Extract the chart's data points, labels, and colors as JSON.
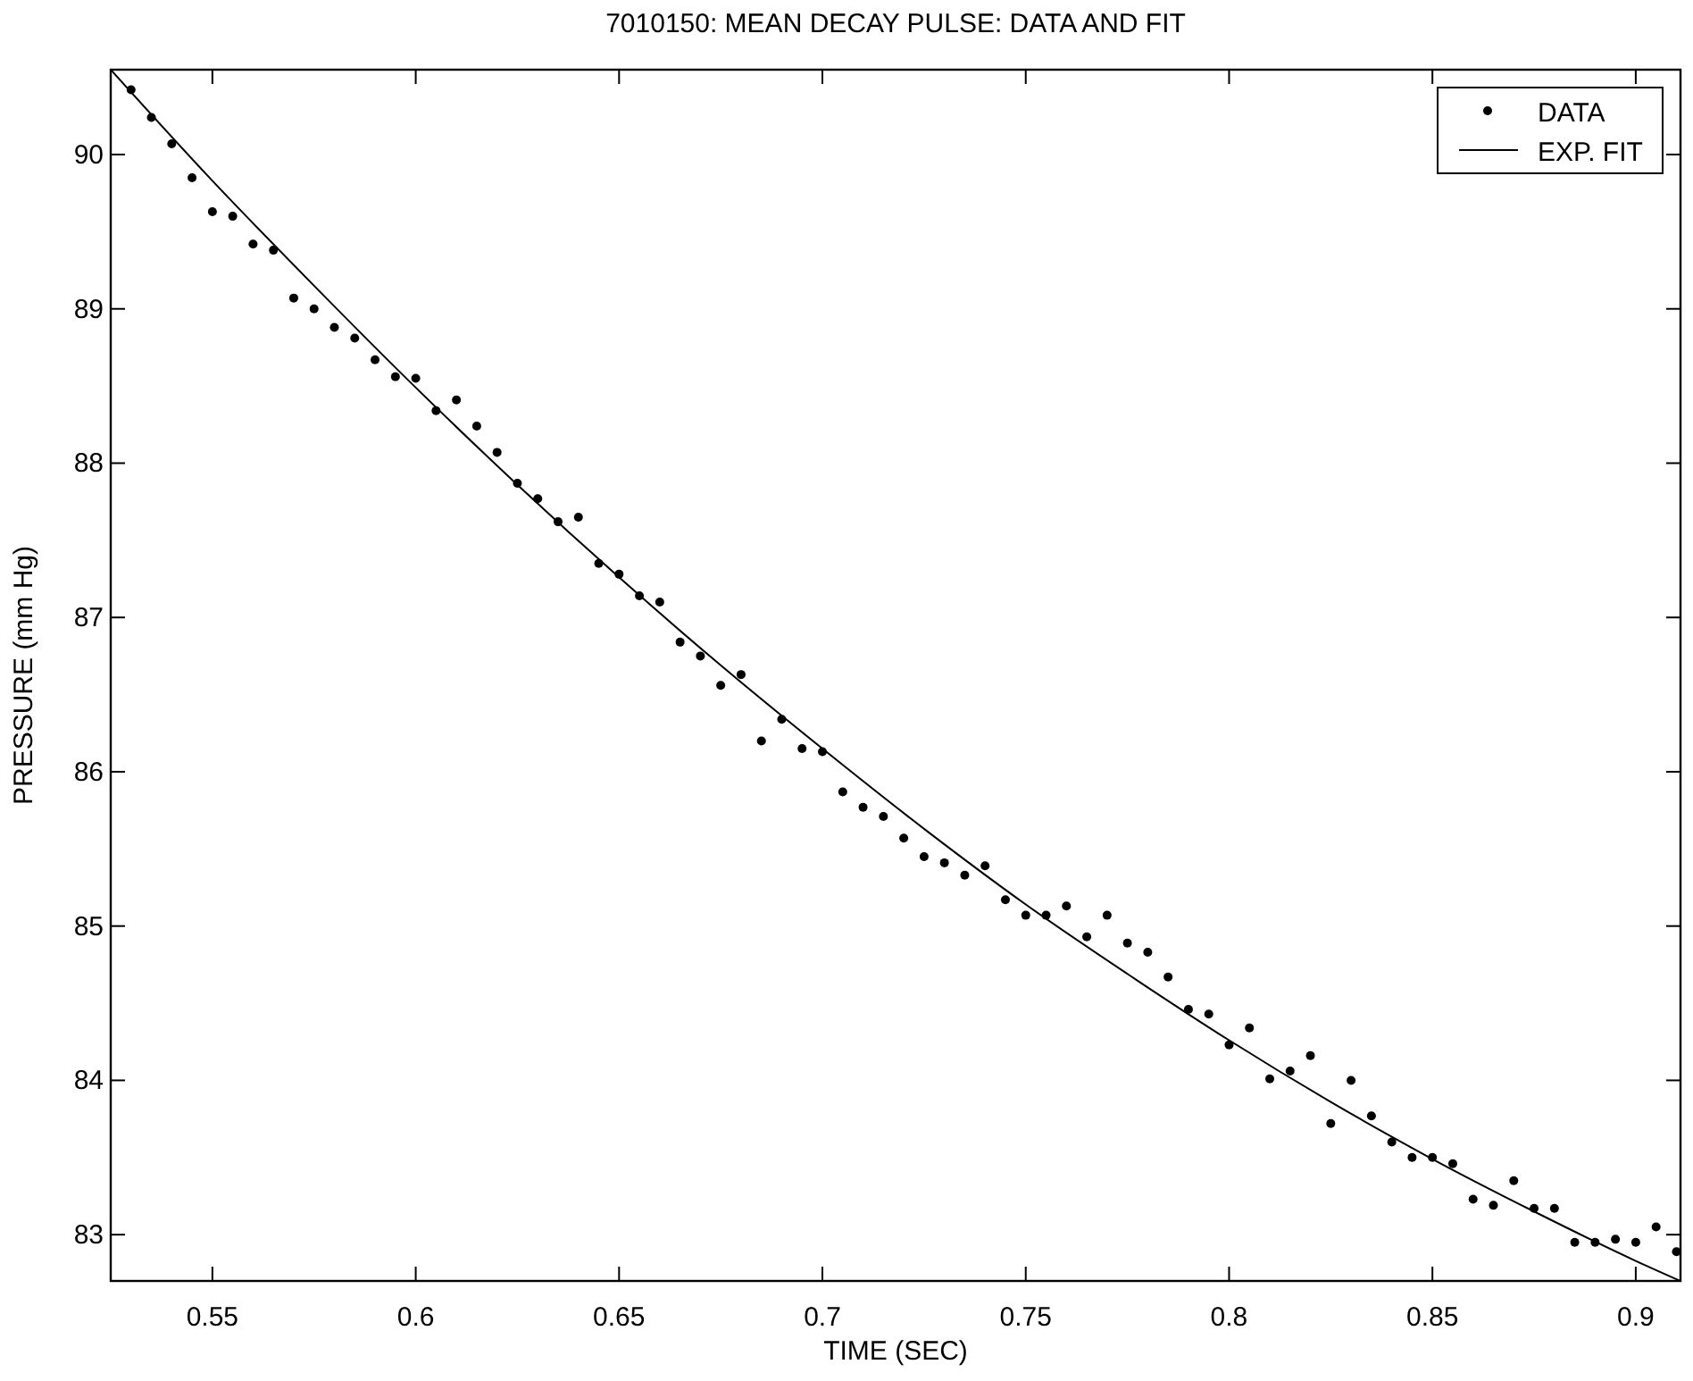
{
  "chart_data": {
    "type": "scatter",
    "title": "7010150: MEAN DECAY PULSE: DATA AND FIT",
    "xlabel": "TIME (SEC)",
    "ylabel": "PRESSURE (mm Hg)",
    "xlim": [
      0.525,
      0.911
    ],
    "xticks": [
      0.55,
      0.6,
      0.65,
      0.7,
      0.75,
      0.8,
      0.85,
      0.9
    ],
    "ylim": [
      82.7,
      90.55
    ],
    "yticks": [
      83,
      84,
      85,
      86,
      87,
      88,
      89,
      90
    ],
    "grid": false,
    "legend": "top right",
    "series": [
      {
        "name": "DATA",
        "marker": "circle",
        "color": "#000000",
        "x": [
          0.53,
          0.535,
          0.54,
          0.545,
          0.55,
          0.555,
          0.56,
          0.565,
          0.57,
          0.575,
          0.58,
          0.585,
          0.59,
          0.595,
          0.6,
          0.605,
          0.61,
          0.615,
          0.62,
          0.625,
          0.63,
          0.635,
          0.64,
          0.645,
          0.65,
          0.655,
          0.66,
          0.665,
          0.67,
          0.675,
          0.68,
          0.685,
          0.69,
          0.695,
          0.7,
          0.705,
          0.71,
          0.715,
          0.72,
          0.725,
          0.73,
          0.735,
          0.74,
          0.745,
          0.75,
          0.755,
          0.76,
          0.765,
          0.77,
          0.775,
          0.78,
          0.785,
          0.79,
          0.795,
          0.8,
          0.805,
          0.81,
          0.815,
          0.82,
          0.825,
          0.83,
          0.835,
          0.84,
          0.845,
          0.85,
          0.855,
          0.86,
          0.865,
          0.87,
          0.875,
          0.88,
          0.885,
          0.89,
          0.895,
          0.9,
          0.905,
          0.91
        ],
        "values": [
          90.42,
          90.24,
          90.07,
          89.85,
          89.63,
          89.6,
          89.42,
          89.38,
          89.07,
          89.0,
          88.88,
          88.81,
          88.67,
          88.56,
          88.55,
          88.34,
          88.41,
          88.24,
          88.07,
          87.87,
          87.77,
          87.62,
          87.65,
          87.35,
          87.28,
          87.14,
          87.1,
          86.84,
          86.75,
          86.56,
          86.63,
          86.2,
          86.34,
          86.15,
          86.13,
          85.87,
          85.77,
          85.71,
          85.57,
          85.45,
          85.41,
          85.33,
          85.39,
          85.17,
          85.07,
          85.07,
          85.13,
          84.93,
          85.07,
          84.89,
          84.83,
          84.67,
          84.46,
          84.43,
          84.23,
          84.34,
          84.01,
          84.06,
          84.16,
          83.72,
          84.0,
          83.77,
          83.6,
          83.5,
          83.5,
          83.46,
          83.23,
          83.19,
          83.35,
          83.17,
          83.17,
          82.95,
          82.95,
          82.97,
          82.95,
          83.05,
          82.89
        ]
      },
      {
        "name": "EXP. FIT",
        "type": "line",
        "line_style": "solid",
        "color": "#000000",
        "x": [
          0.525,
          0.55,
          0.575,
          0.6,
          0.625,
          0.65,
          0.675,
          0.7,
          0.725,
          0.75,
          0.775,
          0.8,
          0.825,
          0.85,
          0.875,
          0.9,
          0.911
        ],
        "values": [
          90.55,
          89.83,
          89.15,
          88.49,
          87.86,
          87.26,
          86.69,
          86.15,
          85.63,
          85.14,
          84.69,
          84.26,
          83.86,
          83.49,
          83.15,
          82.83,
          82.7
        ]
      }
    ]
  }
}
